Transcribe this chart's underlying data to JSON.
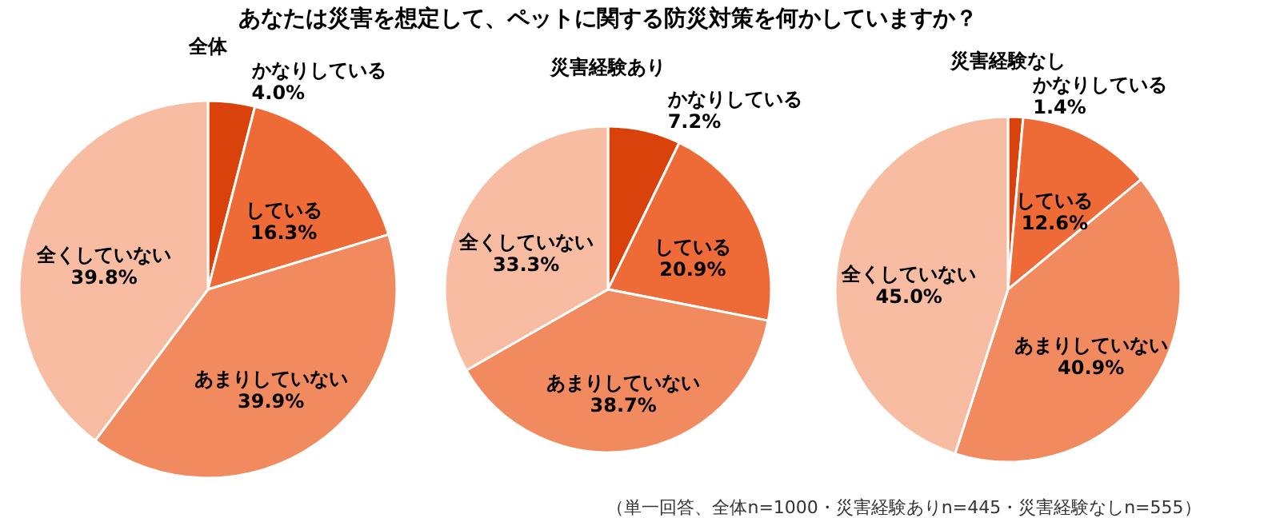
{
  "chart_data": [
    {
      "type": "pie",
      "title": "全体",
      "annotations": [
        "あなたは災害を想定して、ペットに関する防災対策を何かしていますか？",
        "（単一回答、全体n=1000・災害経験ありn=445・災害経験なしn=555）"
      ],
      "categories": [
        "かなりしている",
        "している",
        "あまりしていない",
        "全くしていない"
      ],
      "values": [
        4.0,
        16.3,
        39.9,
        39.8
      ],
      "value_labels": [
        "4.0%",
        "16.3%",
        "39.9%",
        "39.8%"
      ],
      "colors": [
        "#d9420b",
        "#ee6a36",
        "#f18a5e",
        "#f7bca1"
      ]
    },
    {
      "type": "pie",
      "title": "災害経験あり",
      "categories": [
        "かなりしている",
        "している",
        "あまりしていない",
        "全くしていない"
      ],
      "values": [
        7.2,
        20.9,
        38.7,
        33.3
      ],
      "value_labels": [
        "7.2%",
        "20.9%",
        "38.7%",
        "33.3%"
      ],
      "colors": [
        "#d9420b",
        "#ee6a36",
        "#f18a5e",
        "#f7bca1"
      ]
    },
    {
      "type": "pie",
      "title": "災害経験なし",
      "categories": [
        "かなりしている",
        "している",
        "あまりしていない",
        "全くしていない"
      ],
      "values": [
        1.4,
        12.6,
        40.9,
        45.0
      ],
      "value_labels": [
        "1.4%",
        "12.6%",
        "40.9%",
        "45.0%"
      ],
      "colors": [
        "#d9420b",
        "#ee6a36",
        "#f18a5e",
        "#f7bca1"
      ]
    }
  ]
}
